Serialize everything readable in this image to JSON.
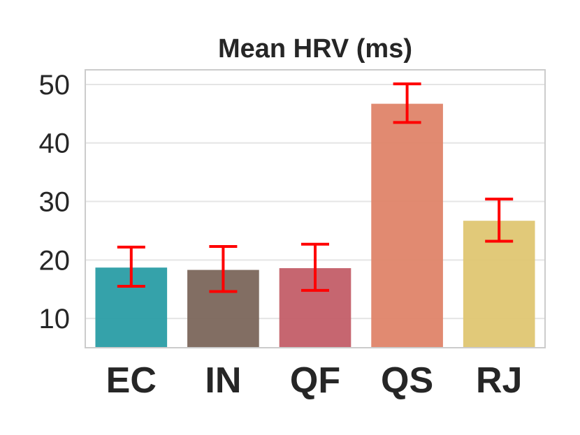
{
  "chart_data": {
    "type": "bar",
    "title": "Mean HRV (ms)",
    "xlabel": "",
    "ylabel": "",
    "categories": [
      "EC",
      "IN",
      "QF",
      "QS",
      "RJ"
    ],
    "values": [
      18.7,
      18.3,
      18.6,
      46.7,
      26.7
    ],
    "error_low": [
      15.5,
      14.6,
      14.8,
      43.5,
      23.2
    ],
    "error_high": [
      22.2,
      22.3,
      22.7,
      50.1,
      30.4
    ],
    "ylim": [
      5,
      52.5
    ],
    "yticks": [
      "10",
      "20",
      "30",
      "40",
      "50"
    ],
    "ytick_values": [
      10,
      20,
      30,
      40,
      50
    ],
    "grid": true,
    "colors": [
      "#2a9da5",
      "#7b665b",
      "#c35e68",
      "#df8469",
      "#dfc672"
    ],
    "error_color": "#ff0000",
    "grid_color": "#e5e5e5",
    "frame_color": "#cccccc"
  }
}
